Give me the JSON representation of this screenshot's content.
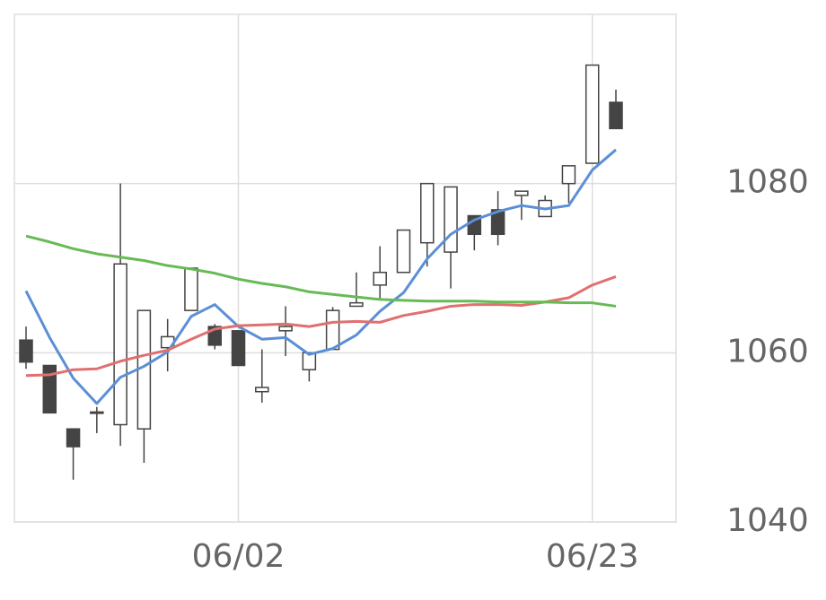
{
  "chart_data": {
    "type": "candlestick",
    "categories": [
      null,
      null,
      null,
      null,
      null,
      null,
      null,
      null,
      null,
      "06/02",
      null,
      null,
      null,
      null,
      null,
      null,
      null,
      null,
      null,
      null,
      null,
      null,
      null,
      null,
      "06/23",
      null
    ],
    "open": [
      1061.5,
      1058.5,
      1051.0,
      1053.0,
      1051.5,
      1051.0,
      1060.6,
      1065.0,
      1063.1,
      1062.6,
      1055.4,
      1062.6,
      1058.0,
      1060.4,
      1065.5,
      1068.0,
      1069.5,
      1073.0,
      1071.9,
      1076.2,
      1076.9,
      1078.6,
      1076.1,
      1080.0,
      1082.4,
      1089.6
    ],
    "high": [
      1063.1,
      1058.5,
      1051.0,
      1053.6,
      1080.0,
      1065.0,
      1064.0,
      1070.0,
      1063.4,
      1062.6,
      1060.4,
      1065.5,
      1060.0,
      1065.4,
      1069.5,
      1072.6,
      1074.5,
      1080.0,
      1079.6,
      1076.2,
      1079.1,
      1079.1,
      1078.6,
      1082.1,
      1094.0,
      1091.1
    ],
    "low": [
      1058.1,
      1052.9,
      1045.0,
      1050.5,
      1049.0,
      1047.0,
      1057.8,
      1065.0,
      1060.4,
      1058.5,
      1054.1,
      1059.6,
      1056.6,
      1060.4,
      1065.5,
      1066.4,
      1069.5,
      1070.2,
      1067.6,
      1072.1,
      1072.7,
      1075.7,
      1076.1,
      1077.7,
      1082.4,
      1086.5
    ],
    "close": [
      1058.9,
      1052.9,
      1048.9,
      1053.0,
      1070.5,
      1065.0,
      1061.9,
      1070.0,
      1060.9,
      1058.5,
      1055.9,
      1063.1,
      1060.0,
      1065.0,
      1065.9,
      1069.5,
      1074.5,
      1080.0,
      1079.6,
      1074.0,
      1074.0,
      1079.1,
      1078.0,
      1082.1,
      1094.0,
      1086.5
    ],
    "up_color": "#ffffff",
    "down_color": "#444444",
    "edge_color": "#444444",
    "series": [
      {
        "color": "#5b8fd6",
        "values": [
          1067.3,
          1061.8,
          1057.0,
          1054.0,
          1057.1,
          1058.4,
          1060.1,
          1064.3,
          1065.7,
          1063.1,
          1061.6,
          1061.8,
          1059.8,
          1060.5,
          1062.1,
          1064.9,
          1067.1,
          1071.1,
          1074.0,
          1075.7,
          1076.7,
          1077.4,
          1077.0,
          1077.4,
          1081.6,
          1084.0
        ]
      },
      {
        "color": "#e07070",
        "values": [
          1057.3,
          1057.4,
          1058.0,
          1058.1,
          1059.0,
          1059.7,
          1060.3,
          1061.6,
          1062.8,
          1063.2,
          1063.3,
          1063.4,
          1063.1,
          1063.6,
          1063.7,
          1063.6,
          1064.4,
          1064.9,
          1065.5,
          1065.7,
          1065.7,
          1065.6,
          1066.0,
          1066.5,
          1068.0,
          1069.0
        ]
      },
      {
        "color": "#66bb55",
        "values": [
          1073.8,
          1073.1,
          1072.3,
          1071.7,
          1071.3,
          1070.9,
          1070.3,
          1069.9,
          1069.4,
          1068.7,
          1068.2,
          1067.8,
          1067.2,
          1066.9,
          1066.6,
          1066.3,
          1066.2,
          1066.1,
          1066.1,
          1066.1,
          1066.0,
          1066.0,
          1066.0,
          1065.9,
          1065.9,
          1065.5
        ]
      }
    ],
    "ylim": [
      1040,
      1100
    ],
    "yticks": [
      1040,
      1060,
      1080
    ],
    "grid": true,
    "y_axis_side": "right"
  }
}
